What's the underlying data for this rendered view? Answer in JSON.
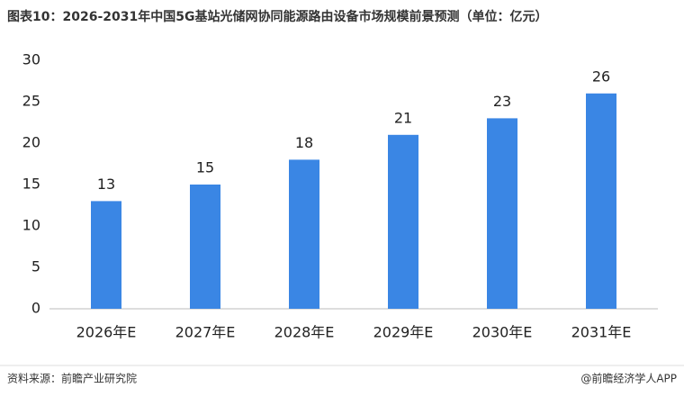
{
  "chart_data": {
    "type": "bar",
    "title": "图表10：2026-2031年中国5G基站光储网协同能源路由设备市场规模前景预测（单位：亿元）",
    "categories": [
      "2026年E",
      "2027年E",
      "2028年E",
      "2029年E",
      "2030年E",
      "2031年E"
    ],
    "values": [
      13,
      15,
      18,
      21,
      23,
      26
    ],
    "color": "#3a86e4",
    "ylim": [
      0,
      30
    ],
    "yticks": [
      0,
      5,
      10,
      15,
      20,
      25,
      30
    ],
    "grid": false,
    "source": "资料来源：前瞻产业研究院",
    "credit": "@前瞻经济学人APP"
  }
}
